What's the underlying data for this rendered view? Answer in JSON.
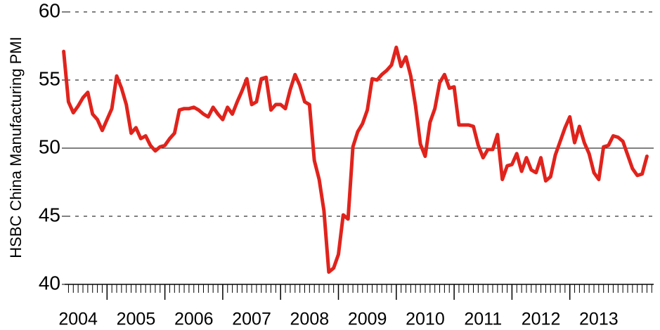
{
  "chart_data": {
    "type": "line",
    "ylabel": "HSBC China Manufacturing PMI",
    "color": "#e0231c",
    "x": [
      2004.25,
      2004.333,
      2004.417,
      2004.5,
      2004.583,
      2004.667,
      2004.75,
      2004.833,
      2004.917,
      2005,
      2005.083,
      2005.167,
      2005.25,
      2005.333,
      2005.417,
      2005.5,
      2005.583,
      2005.667,
      2005.75,
      2005.833,
      2005.917,
      2006,
      2006.083,
      2006.167,
      2006.25,
      2006.333,
      2006.417,
      2006.5,
      2006.583,
      2006.667,
      2006.75,
      2006.833,
      2006.917,
      2007,
      2007.083,
      2007.167,
      2007.25,
      2007.333,
      2007.417,
      2007.5,
      2007.583,
      2007.667,
      2007.75,
      2007.833,
      2007.917,
      2008,
      2008.083,
      2008.167,
      2008.25,
      2008.333,
      2008.417,
      2008.5,
      2008.583,
      2008.667,
      2008.75,
      2008.833,
      2008.917,
      2009,
      2009.083,
      2009.167,
      2009.25,
      2009.333,
      2009.417,
      2009.5,
      2009.583,
      2009.667,
      2009.75,
      2009.833,
      2009.917,
      2010,
      2010.083,
      2010.167,
      2010.25,
      2010.333,
      2010.417,
      2010.5,
      2010.583,
      2010.667,
      2010.75,
      2010.833,
      2010.917,
      2011,
      2011.083,
      2011.167,
      2011.25,
      2011.333,
      2011.417,
      2011.5,
      2011.583,
      2011.667,
      2011.75,
      2011.833,
      2011.917,
      2012,
      2012.083,
      2012.167,
      2012.25,
      2012.333,
      2012.417,
      2012.5,
      2012.583,
      2012.667,
      2012.75,
      2012.833,
      2012.917,
      2013,
      2013.083,
      2013.167,
      2013.25,
      2013.333,
      2013.417,
      2013.5,
      2013.583,
      2013.667,
      2013.75,
      2013.833,
      2013.917,
      2014,
      2014.083,
      2014.167,
      2014.25,
      2014.333
    ],
    "values": [
      57.1,
      53.4,
      52.6,
      53.1,
      53.7,
      54.1,
      52.5,
      52.1,
      51.3,
      52.1,
      52.9,
      55.3,
      54.4,
      53.2,
      51.1,
      51.5,
      50.7,
      50.9,
      50.2,
      49.8,
      50.1,
      50.2,
      50.7,
      51.1,
      52.8,
      52.9,
      52.9,
      53.0,
      52.8,
      52.5,
      52.3,
      53.0,
      52.5,
      52.1,
      53.0,
      52.5,
      53.4,
      54.2,
      55.1,
      53.2,
      53.4,
      55.1,
      55.2,
      52.8,
      53.2,
      53.2,
      52.9,
      54.3,
      55.4,
      54.6,
      53.4,
      53.2,
      49.1,
      47.7,
      45.4,
      40.9,
      41.2,
      42.2,
      45.1,
      44.8,
      50.1,
      51.2,
      51.8,
      52.8,
      55.1,
      55.0,
      55.4,
      55.7,
      56.1,
      57.4,
      56.0,
      56.7,
      55.3,
      53.1,
      50.3,
      49.4,
      51.9,
      52.9,
      54.8,
      55.4,
      54.4,
      54.5,
      51.7,
      51.7,
      51.7,
      51.6,
      50.2,
      49.3,
      49.9,
      49.9,
      51.0,
      47.7,
      48.7,
      48.8,
      49.6,
      48.3,
      49.3,
      48.4,
      48.2,
      49.3,
      47.6,
      47.9,
      49.5,
      50.5,
      51.5,
      52.3,
      50.4,
      51.6,
      50.4,
      49.6,
      48.2,
      47.7,
      50.1,
      50.2,
      50.9,
      50.8,
      50.5,
      49.5,
      48.5,
      48.0,
      48.1,
      49.4
    ],
    "xlim": [
      2004,
      2014.5
    ],
    "xticks": [
      2004,
      2005,
      2006,
      2007,
      2008,
      2009,
      2010,
      2011,
      2012,
      2013
    ],
    "ylim": [
      40,
      60
    ],
    "yticks": [
      40,
      45,
      50,
      55,
      60
    ],
    "grid": true,
    "hline": 50
  }
}
